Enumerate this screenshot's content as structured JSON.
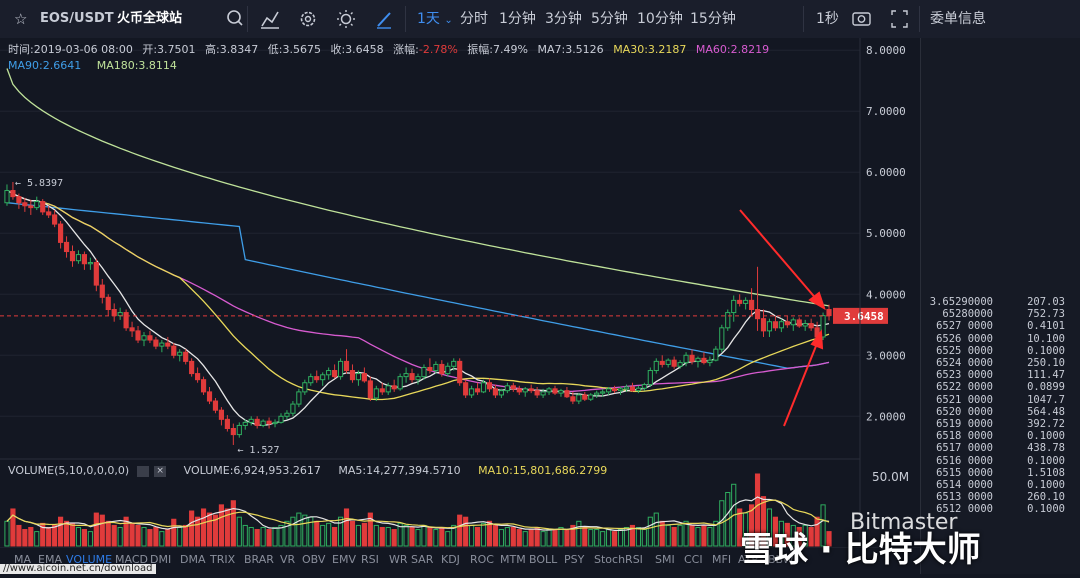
{
  "header": {
    "pair": "EOS/USDT",
    "exchange": "火币全球站",
    "intervals": [
      "1天",
      "分时",
      "1分钟",
      "3分钟",
      "5分钟",
      "10分钟",
      "15分钟"
    ],
    "active_interval": "1天",
    "refresh": "1秒",
    "orderbook_title": "委单信息"
  },
  "info": {
    "time": "时间:2019-03-06 08:00",
    "open": "开:3.7501",
    "high": "高:3.8347",
    "low": "低:3.5675",
    "close": "收:3.6458",
    "change_label": "涨幅:",
    "change": "-2.78%",
    "amp_label": "振幅:",
    "amp": "7.49%",
    "ma7": "MA7:3.5126",
    "ma30": "MA30:3.2187",
    "ma60": "MA60:2.8219",
    "ma90": "MA90:2.6641",
    "ma180": "MA180:3.8114"
  },
  "colors": {
    "up": "#2fae5f",
    "down": "#e03b3b",
    "ma7": "#e6e6e6",
    "ma30": "#e8d85a",
    "ma60": "#d75bd0",
    "ma90": "#3f9ee8",
    "ma180": "#bfe29a"
  },
  "price_axis": {
    "ticks": [
      "8.0000",
      "7.0000",
      "6.0000",
      "5.0000",
      "4.0000",
      "3.0000",
      "2.0000"
    ],
    "current": "3.6458"
  },
  "annotations": {
    "high": "← 5.8397",
    "low": "← 1.527"
  },
  "volume": {
    "title": "VOLUME(5,10,0,0,0,0)",
    "value": "VOLUME:6,924,953.2617",
    "ma5": "MA5:14,277,394.5710",
    "ma10": "MA10:15,801,686.2799",
    "axis_label": "50.0M"
  },
  "indicators": [
    "MA",
    "EMA",
    "VOLUME",
    "MACD",
    "DMI",
    "DMA",
    "TRIX",
    "BRAR",
    "VR",
    "OBV",
    "EMV",
    "RSI",
    "WR",
    "SAR",
    "KDJ",
    "ROC",
    "MTM",
    "BOLL",
    "PSY",
    "StochRSI",
    "SMI",
    "CCI",
    "MFI",
    "ATR",
    "BBW"
  ],
  "active_indicator": "VOLUME",
  "orderbook": [
    {
      "price": "3.65290000",
      "size": "207.03"
    },
    {
      "price": "65280000",
      "size": "752.73"
    },
    {
      "price": "6527 0000",
      "size": "0.4101"
    },
    {
      "price": "6526 0000",
      "size": "10.100"
    },
    {
      "price": "6525 0000",
      "size": "0.1000"
    },
    {
      "price": "6524 0000",
      "size": "250.10"
    },
    {
      "price": "6523 0000",
      "size": "111.47"
    },
    {
      "price": "6522 0000",
      "size": "0.0899"
    },
    {
      "price": "6521 0000",
      "size": "1047.7"
    },
    {
      "price": "6520 0000",
      "size": "564.48"
    },
    {
      "price": "6519 0000",
      "size": "392.72"
    },
    {
      "price": "6518 0000",
      "size": "0.1000"
    },
    {
      "price": "6517 0000",
      "size": "438.78"
    },
    {
      "price": "6516 0000",
      "size": "0.1000"
    },
    {
      "price": "6515 0000",
      "size": "1.5108"
    },
    {
      "price": "6514 0000",
      "size": "0.1000"
    },
    {
      "price": "6513 0000",
      "size": "260.10"
    },
    {
      "price": "6512 0000",
      "size": "0.1000"
    }
  ],
  "watermark": {
    "brand": "Bitmaster",
    "site": "雪球 · 比特大师",
    "url": "//www.aicoin.net.cn/download"
  },
  "chart_data": {
    "type": "candlestick",
    "y_range": [
      1.3,
      8.2
    ],
    "candles": [
      [
        5.5,
        5.8,
        5.45,
        5.7
      ],
      [
        5.7,
        5.84,
        5.55,
        5.6
      ],
      [
        5.6,
        5.65,
        5.4,
        5.5
      ],
      [
        5.5,
        5.58,
        5.35,
        5.45
      ],
      [
        5.45,
        5.55,
        5.3,
        5.42
      ],
      [
        5.42,
        5.6,
        5.38,
        5.52
      ],
      [
        5.52,
        5.56,
        5.3,
        5.35
      ],
      [
        5.35,
        5.45,
        5.25,
        5.3
      ],
      [
        5.3,
        5.38,
        5.1,
        5.15
      ],
      [
        5.15,
        5.2,
        4.75,
        4.85
      ],
      [
        4.85,
        4.95,
        4.6,
        4.7
      ],
      [
        4.7,
        4.8,
        4.45,
        4.55
      ],
      [
        4.55,
        4.72,
        4.5,
        4.65
      ],
      [
        4.65,
        4.7,
        4.4,
        4.5
      ],
      [
        4.5,
        4.6,
        4.4,
        4.52
      ],
      [
        4.52,
        4.58,
        4.05,
        4.15
      ],
      [
        4.15,
        4.25,
        3.85,
        3.95
      ],
      [
        3.95,
        4.0,
        3.65,
        3.75
      ],
      [
        3.75,
        3.85,
        3.55,
        3.65
      ],
      [
        3.65,
        3.78,
        3.58,
        3.7
      ],
      [
        3.7,
        3.75,
        3.4,
        3.45
      ],
      [
        3.45,
        3.55,
        3.3,
        3.4
      ],
      [
        3.4,
        3.48,
        3.2,
        3.25
      ],
      [
        3.25,
        3.38,
        3.15,
        3.32
      ],
      [
        3.32,
        3.4,
        3.2,
        3.25
      ],
      [
        3.25,
        3.3,
        3.1,
        3.15
      ],
      [
        3.15,
        3.25,
        3.05,
        3.2
      ],
      [
        3.2,
        3.3,
        3.1,
        3.15
      ],
      [
        3.15,
        3.2,
        2.95,
        3.0
      ],
      [
        3.0,
        3.1,
        2.9,
        3.05
      ],
      [
        3.05,
        3.1,
        2.85,
        2.9
      ],
      [
        2.9,
        2.95,
        2.65,
        2.7
      ],
      [
        2.7,
        2.8,
        2.55,
        2.6
      ],
      [
        2.6,
        2.65,
        2.35,
        2.4
      ],
      [
        2.4,
        2.48,
        2.2,
        2.25
      ],
      [
        2.25,
        2.3,
        2.05,
        2.1
      ],
      [
        2.1,
        2.15,
        1.85,
        1.95
      ],
      [
        1.95,
        2.02,
        1.75,
        1.8
      ],
      [
        1.8,
        1.88,
        1.53,
        1.7
      ],
      [
        1.7,
        1.9,
        1.65,
        1.85
      ],
      [
        1.85,
        1.95,
        1.78,
        1.9
      ],
      [
        1.9,
        2.0,
        1.85,
        1.95
      ],
      [
        1.95,
        2.0,
        1.8,
        1.85
      ],
      [
        1.85,
        1.95,
        1.82,
        1.92
      ],
      [
        1.92,
        1.98,
        1.8,
        1.88
      ],
      [
        1.88,
        1.95,
        1.82,
        1.9
      ],
      [
        1.9,
        2.05,
        1.88,
        2.0
      ],
      [
        2.0,
        2.1,
        1.95,
        2.05
      ],
      [
        2.05,
        2.25,
        2.0,
        2.2
      ],
      [
        2.2,
        2.45,
        2.15,
        2.4
      ],
      [
        2.4,
        2.6,
        2.35,
        2.55
      ],
      [
        2.55,
        2.7,
        2.5,
        2.65
      ],
      [
        2.65,
        2.75,
        2.55,
        2.6
      ],
      [
        2.6,
        2.72,
        2.5,
        2.68
      ],
      [
        2.68,
        2.8,
        2.6,
        2.75
      ],
      [
        2.75,
        2.85,
        2.62,
        2.65
      ],
      [
        2.65,
        2.95,
        2.6,
        2.9
      ],
      [
        2.9,
        3.1,
        2.7,
        2.75
      ],
      [
        2.75,
        2.85,
        2.55,
        2.6
      ],
      [
        2.6,
        2.75,
        2.5,
        2.7
      ],
      [
        2.7,
        2.8,
        2.55,
        2.58
      ],
      [
        2.58,
        2.65,
        2.25,
        2.3
      ],
      [
        2.3,
        2.5,
        2.25,
        2.45
      ],
      [
        2.45,
        2.55,
        2.35,
        2.4
      ],
      [
        2.4,
        2.55,
        2.35,
        2.5
      ],
      [
        2.5,
        2.6,
        2.4,
        2.45
      ],
      [
        2.45,
        2.7,
        2.42,
        2.65
      ],
      [
        2.65,
        2.8,
        2.55,
        2.7
      ],
      [
        2.7,
        2.78,
        2.55,
        2.6
      ],
      [
        2.6,
        2.7,
        2.52,
        2.65
      ],
      [
        2.65,
        2.85,
        2.6,
        2.8
      ],
      [
        2.8,
        2.95,
        2.7,
        2.75
      ],
      [
        2.75,
        2.9,
        2.7,
        2.85
      ],
      [
        2.85,
        2.92,
        2.65,
        2.7
      ],
      [
        2.7,
        2.88,
        2.65,
        2.82
      ],
      [
        2.82,
        2.95,
        2.75,
        2.9
      ],
      [
        2.9,
        2.95,
        2.5,
        2.55
      ],
      [
        2.55,
        2.6,
        2.3,
        2.35
      ],
      [
        2.35,
        2.5,
        2.3,
        2.45
      ],
      [
        2.45,
        2.55,
        2.35,
        2.4
      ],
      [
        2.4,
        2.6,
        2.38,
        2.55
      ],
      [
        2.55,
        2.62,
        2.4,
        2.45
      ],
      [
        2.45,
        2.52,
        2.3,
        2.35
      ],
      [
        2.35,
        2.45,
        2.3,
        2.42
      ],
      [
        2.42,
        2.55,
        2.38,
        2.5
      ],
      [
        2.5,
        2.55,
        2.4,
        2.45
      ],
      [
        2.45,
        2.5,
        2.35,
        2.4
      ],
      [
        2.4,
        2.48,
        2.32,
        2.45
      ],
      [
        2.45,
        2.52,
        2.38,
        2.42
      ],
      [
        2.42,
        2.48,
        2.3,
        2.35
      ],
      [
        2.35,
        2.45,
        2.3,
        2.4
      ],
      [
        2.4,
        2.48,
        2.35,
        2.45
      ],
      [
        2.45,
        2.5,
        2.35,
        2.38
      ],
      [
        2.38,
        2.45,
        2.32,
        2.42
      ],
      [
        2.42,
        2.48,
        2.3,
        2.32
      ],
      [
        2.32,
        2.4,
        2.2,
        2.25
      ],
      [
        2.25,
        2.38,
        2.2,
        2.35
      ],
      [
        2.35,
        2.4,
        2.25,
        2.28
      ],
      [
        2.28,
        2.38,
        2.25,
        2.35
      ],
      [
        2.35,
        2.42,
        2.3,
        2.38
      ],
      [
        2.38,
        2.45,
        2.32,
        2.4
      ],
      [
        2.4,
        2.48,
        2.35,
        2.45
      ],
      [
        2.45,
        2.5,
        2.38,
        2.42
      ],
      [
        2.42,
        2.48,
        2.35,
        2.45
      ],
      [
        2.45,
        2.52,
        2.4,
        2.48
      ],
      [
        2.48,
        2.55,
        2.4,
        2.42
      ],
      [
        2.42,
        2.5,
        2.38,
        2.46
      ],
      [
        2.46,
        2.55,
        2.42,
        2.52
      ],
      [
        2.52,
        2.8,
        2.48,
        2.75
      ],
      [
        2.75,
        2.95,
        2.7,
        2.9
      ],
      [
        2.9,
        3.0,
        2.8,
        2.85
      ],
      [
        2.85,
        2.95,
        2.8,
        2.92
      ],
      [
        2.92,
        2.98,
        2.78,
        2.82
      ],
      [
        2.82,
        2.92,
        2.78,
        2.88
      ],
      [
        2.88,
        3.05,
        2.82,
        3.0
      ],
      [
        3.0,
        3.1,
        2.85,
        2.9
      ],
      [
        2.9,
        2.98,
        2.8,
        2.95
      ],
      [
        2.95,
        3.05,
        2.85,
        2.88
      ],
      [
        2.88,
        2.98,
        2.82,
        2.92
      ],
      [
        2.92,
        3.15,
        2.9,
        3.1
      ],
      [
        3.1,
        3.5,
        3.05,
        3.45
      ],
      [
        3.45,
        3.75,
        3.4,
        3.7
      ],
      [
        3.7,
        3.98,
        3.55,
        3.9
      ],
      [
        3.9,
        4.0,
        3.8,
        3.85
      ],
      [
        3.85,
        3.95,
        3.75,
        3.9
      ],
      [
        3.9,
        4.1,
        3.65,
        3.75
      ],
      [
        3.75,
        4.45,
        3.4,
        3.6
      ],
      [
        3.6,
        3.75,
        3.3,
        3.4
      ],
      [
        3.4,
        3.6,
        3.3,
        3.55
      ],
      [
        3.55,
        3.65,
        3.4,
        3.45
      ],
      [
        3.45,
        3.6,
        3.38,
        3.55
      ],
      [
        3.55,
        3.65,
        3.45,
        3.5
      ],
      [
        3.5,
        3.62,
        3.4,
        3.58
      ],
      [
        3.58,
        3.62,
        3.45,
        3.48
      ],
      [
        3.48,
        3.58,
        3.4,
        3.52
      ],
      [
        3.52,
        3.6,
        3.4,
        3.45
      ],
      [
        3.45,
        3.55,
        3.2,
        3.3
      ],
      [
        3.3,
        3.7,
        3.25,
        3.65
      ],
      [
        3.75,
        3.83,
        3.57,
        3.65
      ]
    ],
    "volumes": [
      12,
      18,
      10,
      8,
      9,
      7,
      11,
      9,
      10,
      14,
      12,
      11,
      9,
      8,
      7,
      16,
      15,
      12,
      10,
      9,
      14,
      11,
      10,
      9,
      8,
      9,
      7,
      8,
      13,
      9,
      10,
      17,
      14,
      18,
      16,
      15,
      20,
      18,
      22,
      14,
      10,
      9,
      8,
      9,
      8,
      9,
      10,
      12,
      14,
      16,
      15,
      14,
      12,
      10,
      11,
      9,
      14,
      18,
      12,
      10,
      11,
      16,
      10,
      9,
      9,
      8,
      11,
      10,
      9,
      8,
      10,
      9,
      8,
      9,
      7,
      10,
      15,
      14,
      10,
      9,
      11,
      12,
      10,
      8,
      9,
      9,
      8,
      7,
      8,
      9,
      7,
      8,
      8,
      9,
      8,
      10,
      12,
      9,
      8,
      8,
      7,
      8,
      7,
      8,
      9,
      10,
      9,
      8,
      14,
      16,
      12,
      10,
      9,
      10,
      12,
      10,
      9,
      10,
      9,
      12,
      22,
      26,
      30,
      18,
      16,
      20,
      35,
      24,
      18,
      14,
      12,
      11,
      10,
      9,
      10,
      9,
      14,
      20,
      7
    ]
  }
}
